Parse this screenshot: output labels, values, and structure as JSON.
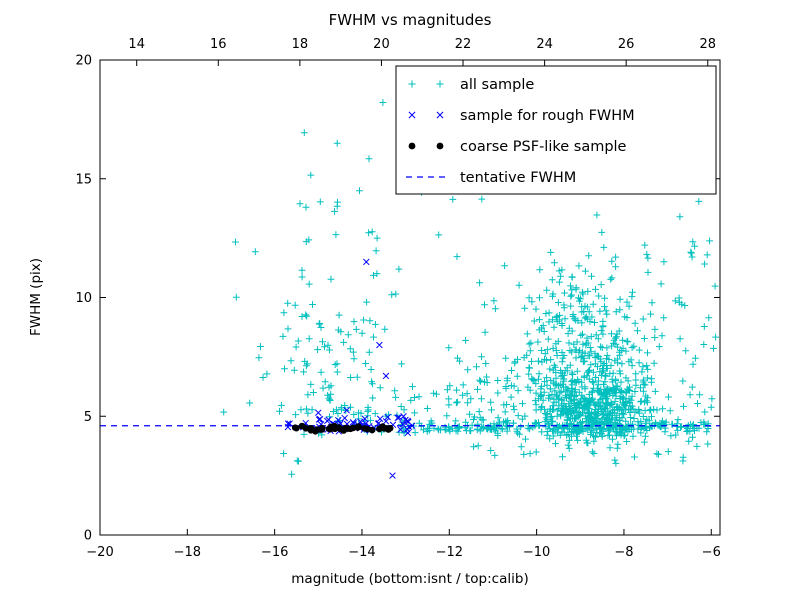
{
  "chart_data": {
    "type": "scatter",
    "title": "FWHM vs magnitudes",
    "xlabel": "magnitude (bottom:isnt / top:calib)",
    "ylabel": "FWHM (pix)",
    "xlim": [
      -20,
      -5.8
    ],
    "xlim_top": [
      13.1,
      28.3
    ],
    "ylim": [
      0,
      20
    ],
    "x_ticks_bottom": [
      -20,
      -18,
      -16,
      -14,
      -12,
      -10,
      -8,
      -6
    ],
    "x_ticks_top": [
      14,
      16,
      18,
      20,
      22,
      24,
      26,
      28
    ],
    "y_ticks": [
      0,
      5,
      10,
      15,
      20
    ],
    "grid": false,
    "legend_position": "upper right",
    "tentative_fwhm": 4.6,
    "seed": 7,
    "colors": {
      "all_sample": "#00bfbf",
      "rough_fwhm": "#0000ff",
      "psf_sample": "#000000",
      "tentative_line": "#0000ff"
    },
    "series": [
      {
        "name": "all sample",
        "marker": "plus",
        "color": "#00bfbf",
        "clusters": [
          {
            "n": 200,
            "x": [
              "u",
              -13.1,
              -5.9
            ],
            "y": [
              "n",
              4.55,
              0.12
            ]
          },
          {
            "n": 380,
            "x": [
              "n",
              -8.7,
              0.55
            ],
            "y": [
              "n",
              5.3,
              0.7
            ],
            "ymin": 4.15
          },
          {
            "n": 260,
            "x": [
              "n",
              -8.8,
              0.75
            ],
            "y": [
              "n",
              7.0,
              1.2
            ]
          },
          {
            "n": 110,
            "x": [
              "n",
              -8.9,
              0.8
            ],
            "y": [
              "n",
              9.5,
              1.3
            ]
          },
          {
            "n": 160,
            "x": [
              "n",
              -10.3,
              1.4
            ],
            "y": [
              "n",
              5.8,
              1.0
            ],
            "ymin": 4.2
          },
          {
            "n": 50,
            "x": [
              "u",
              -11.5,
              -6.2
            ],
            "y": [
              "n",
              3.9,
              0.5
            ]
          },
          {
            "n": 85,
            "x": [
              "n",
              -14.8,
              0.85
            ],
            "y": [
              "n",
              7.0,
              1.7
            ],
            "ymin": 4.9
          },
          {
            "n": 28,
            "x": [
              "n",
              -14.3,
              1.0
            ],
            "y": [
              "n",
              12.5,
              2.0
            ]
          },
          {
            "n": 50,
            "x": [
              "u",
              -16.5,
              -5.85
            ],
            "y": [
              "u",
              2.2,
              19.3
            ]
          },
          {
            "n": 35,
            "x": [
              "u",
              -15.6,
              -13.0
            ],
            "y": [
              "n",
              4.8,
              0.35
            ]
          },
          {
            "n": 45,
            "x": [
              "u",
              -7.6,
              -5.85
            ],
            "y": [
              "u",
              4.3,
              12.5
            ]
          }
        ],
        "points": []
      },
      {
        "name": "sample for rough FWHM",
        "marker": "x",
        "color": "#0000ff",
        "clusters": [
          {
            "n": 60,
            "x": [
              "u",
              -15.7,
              -12.9
            ],
            "y": [
              "n",
              4.68,
              0.16
            ]
          }
        ],
        "points": [
          [
            -13.9,
            11.5
          ],
          [
            -13.6,
            8.0
          ],
          [
            -13.45,
            6.7
          ],
          [
            -13.3,
            2.5
          ],
          [
            -14.35,
            5.25
          ],
          [
            -15.0,
            5.15
          ],
          [
            -12.95,
            4.3
          ],
          [
            -13.05,
            5.0
          ],
          [
            -12.85,
            4.6
          ]
        ]
      },
      {
        "name": "coarse PSF-like sample",
        "marker": "dot",
        "color": "#000000",
        "clusters": [
          {
            "n": 42,
            "x": [
              "u",
              -15.55,
              -13.3
            ],
            "y": [
              "n",
              4.5,
              0.06
            ]
          }
        ],
        "points": []
      },
      {
        "name": "tentative FWHM",
        "marker": "dashed",
        "color": "#0000ff",
        "hline_y": 4.6
      }
    ],
    "legend": [
      {
        "label": "all sample",
        "marker": "plus",
        "color": "#00bfbf"
      },
      {
        "label": "sample for rough FWHM",
        "marker": "x",
        "color": "#0000ff"
      },
      {
        "label": "coarse PSF-like sample",
        "marker": "dot",
        "color": "#000000"
      },
      {
        "label": "tentative FWHM",
        "marker": "dashed",
        "color": "#0000ff"
      }
    ]
  }
}
